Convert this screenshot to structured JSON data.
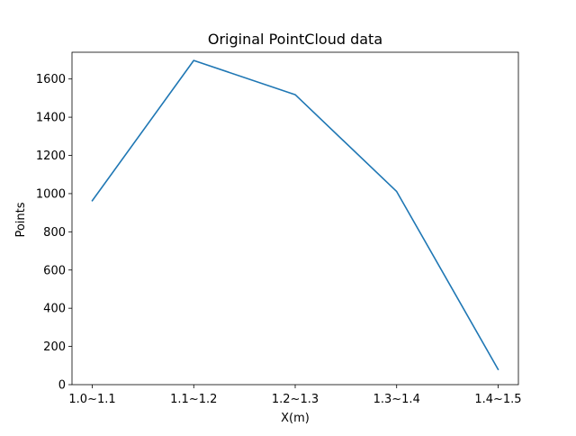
{
  "chart_data": {
    "type": "line",
    "title": "Original PointCloud data",
    "xlabel": "X(m)",
    "ylabel": "Points",
    "categories": [
      "1.0~1.1",
      "1.1~1.2",
      "1.2~1.3",
      "1.3~1.4",
      "1.4~1.5"
    ],
    "series": [
      {
        "values": [
          963,
          1697,
          1518,
          1011,
          80
        ],
        "color": "#1f77b4"
      }
    ],
    "ylim": [
      0,
      1740
    ],
    "yticks": [
      0,
      200,
      400,
      600,
      800,
      1000,
      1200,
      1400,
      1600
    ],
    "grid": false,
    "legend": "none"
  }
}
